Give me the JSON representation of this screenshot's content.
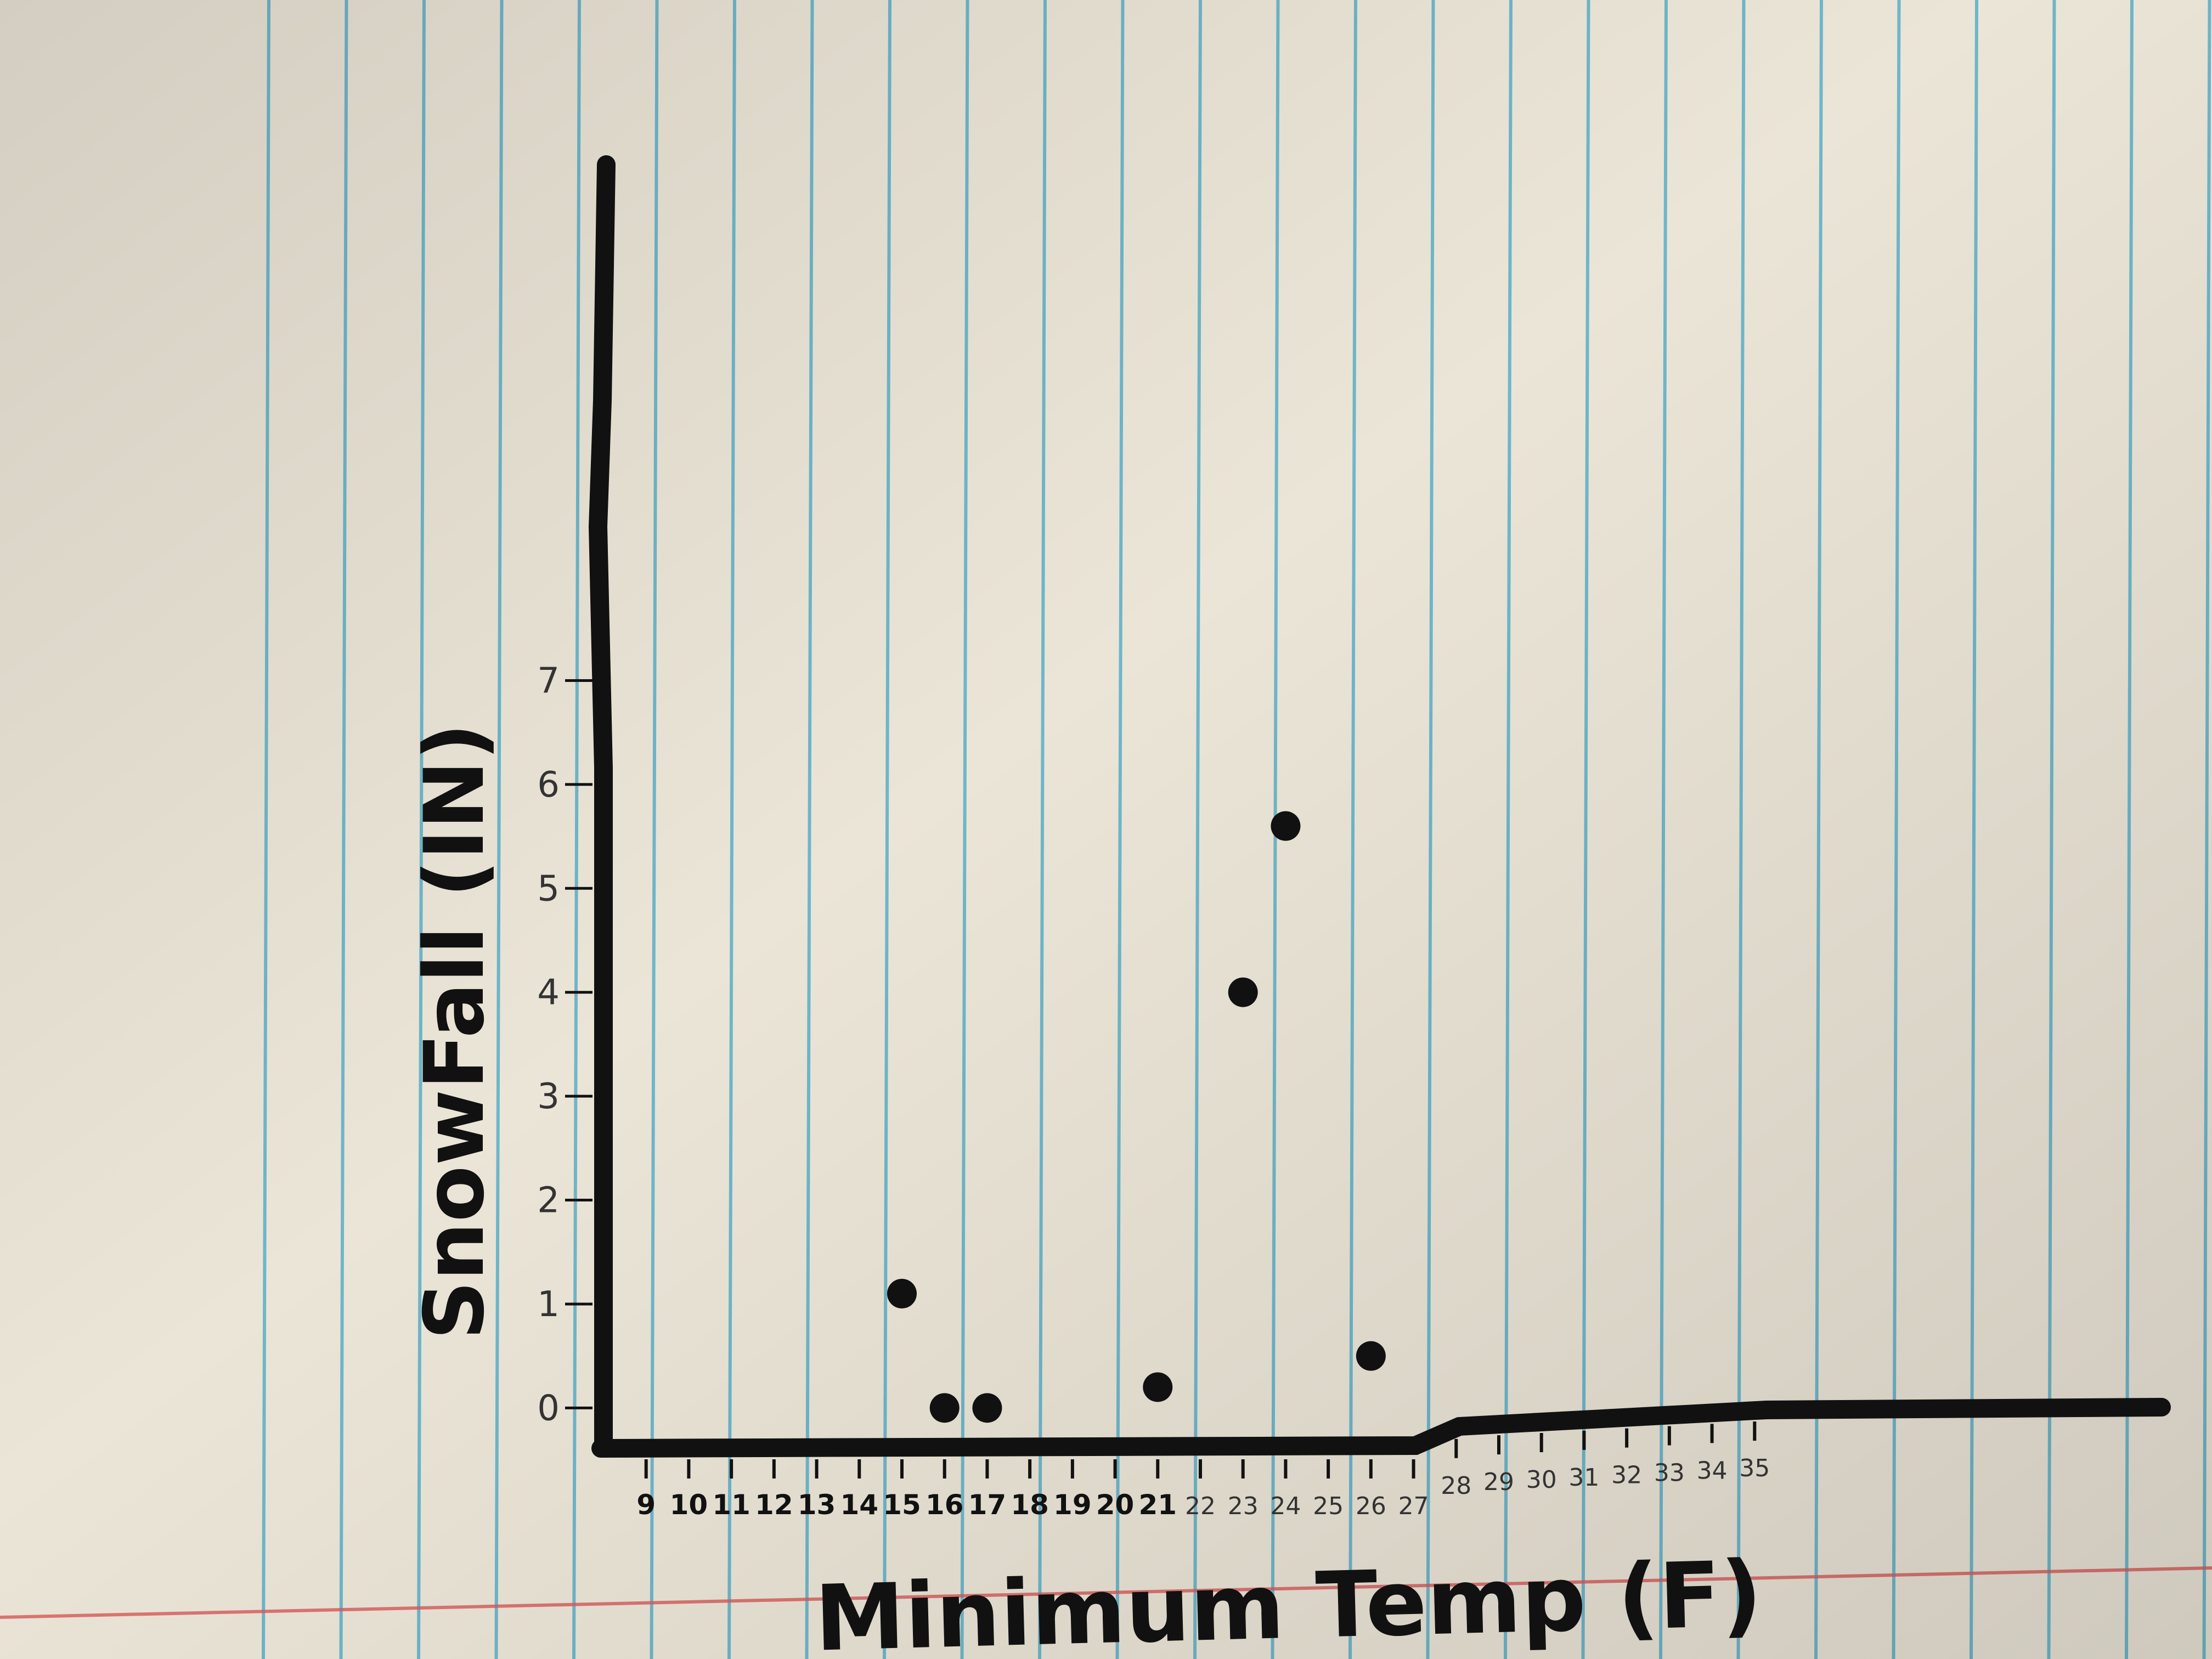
{
  "chart_data": {
    "type": "scatter",
    "title": "",
    "xlabel": "Minimum Temp (F)",
    "ylabel": "SnowFall (IN)",
    "x_ticks": [
      "9",
      "10",
      "11",
      "12",
      "13",
      "14",
      "15",
      "16",
      "17",
      "18",
      "19",
      "20",
      "21",
      "22",
      "23",
      "24",
      "25",
      "26",
      "27",
      "28",
      "29",
      "30",
      "31",
      "32",
      "33",
      "34",
      "35"
    ],
    "y_ticks": [
      "0",
      "1",
      "2",
      "3",
      "4",
      "5",
      "6",
      "7"
    ],
    "xlim": [
      8,
      43
    ],
    "ylim": [
      -0.6,
      7.9
    ],
    "grid": false,
    "legend": "none",
    "points": [
      {
        "x": 15,
        "y": 1.1
      },
      {
        "x": 16,
        "y": 0.0
      },
      {
        "x": 17,
        "y": 0.0
      },
      {
        "x": 21,
        "y": 0.2
      },
      {
        "x": 23,
        "y": 4.0
      },
      {
        "x": 24,
        "y": 5.6
      },
      {
        "x": 26,
        "y": 0.5
      }
    ]
  },
  "colors": {
    "paper": "#e8e2d4",
    "rule_lines": "#5aaec8",
    "margin_line": "#d85a5a",
    "ink": "#111111"
  }
}
